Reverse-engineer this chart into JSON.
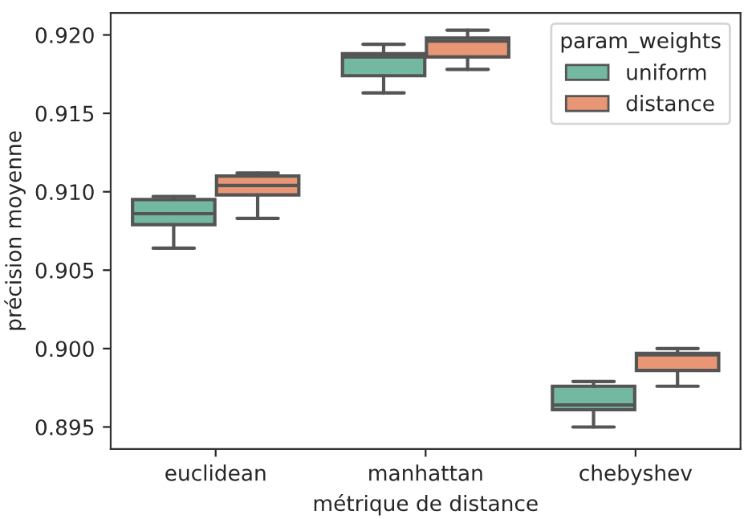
{
  "chart_data": {
    "type": "box",
    "xlabel": "métrique de distance",
    "ylabel": "précision moyenne",
    "legend_title": "param_weights",
    "legend": "top right",
    "grid": false,
    "categories": [
      "euclidean",
      "manhattan",
      "chebyshev"
    ],
    "ylim": [
      0.8936,
      0.9214
    ],
    "yticks": [
      {
        "value": 0.895,
        "label": "0.895"
      },
      {
        "value": 0.9,
        "label": "0.900"
      },
      {
        "value": 0.905,
        "label": "0.905"
      },
      {
        "value": 0.91,
        "label": "0.910"
      },
      {
        "value": 0.915,
        "label": "0.915"
      },
      {
        "value": 0.92,
        "label": "0.920"
      }
    ],
    "series": [
      {
        "name": "uniform",
        "color": "#73b8a0",
        "boxes": [
          {
            "low": 0.9064,
            "q1": 0.9079,
            "median": 0.9086,
            "q3": 0.9095,
            "high": 0.9097
          },
          {
            "low": 0.9163,
            "q1": 0.9174,
            "median": 0.9186,
            "q3": 0.9188,
            "high": 0.9194
          },
          {
            "low": 0.895,
            "q1": 0.8961,
            "median": 0.8964,
            "q3": 0.8976,
            "high": 0.8979
          }
        ]
      },
      {
        "name": "distance",
        "color": "#e99675",
        "boxes": [
          {
            "low": 0.9083,
            "q1": 0.9098,
            "median": 0.9104,
            "q3": 0.911,
            "high": 0.9112
          },
          {
            "low": 0.9178,
            "q1": 0.9186,
            "median": 0.9196,
            "q3": 0.9198,
            "high": 0.9203
          },
          {
            "low": 0.8976,
            "q1": 0.8986,
            "median": 0.8996,
            "q3": 0.8997,
            "high": 0.9
          }
        ]
      }
    ]
  }
}
